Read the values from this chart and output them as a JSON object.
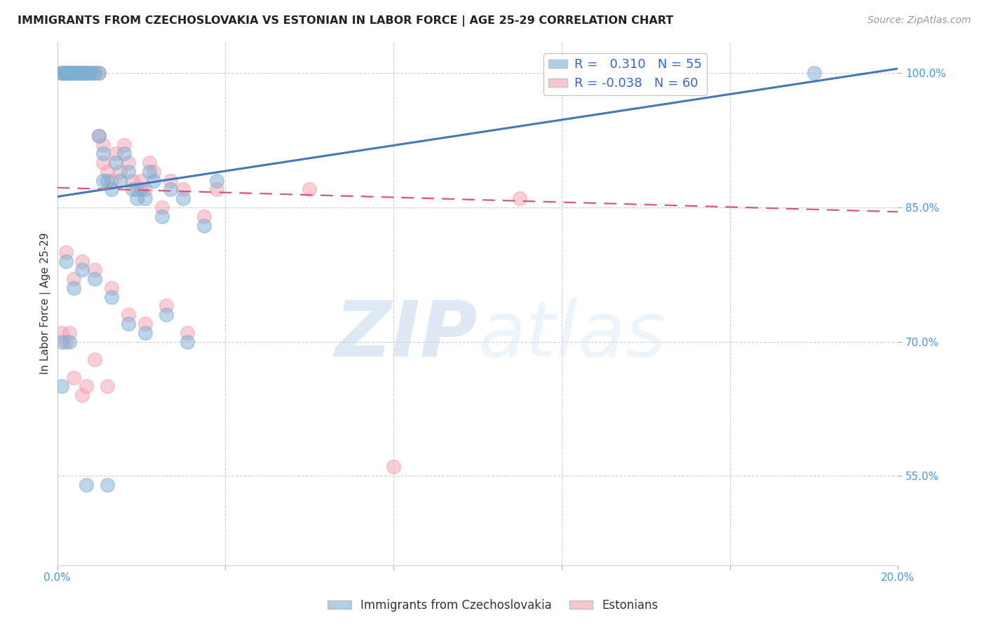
{
  "title": "IMMIGRANTS FROM CZECHOSLOVAKIA VS ESTONIAN IN LABOR FORCE | AGE 25-29 CORRELATION CHART",
  "source_text": "Source: ZipAtlas.com",
  "ylabel": "In Labor Force | Age 25-29",
  "x_min": 0.0,
  "x_max": 0.2,
  "y_min": 0.45,
  "y_max": 1.035,
  "x_ticks": [
    0.0,
    0.04,
    0.08,
    0.12,
    0.16,
    0.2
  ],
  "x_tick_labels": [
    "0.0%",
    "",
    "",
    "",
    "",
    "20.0%"
  ],
  "y_tick_labels": [
    "55.0%",
    "70.0%",
    "85.0%",
    "100.0%"
  ],
  "y_ticks": [
    0.55,
    0.7,
    0.85,
    1.0
  ],
  "grid_color": "#c8c8c8",
  "background_color": "#ffffff",
  "blue_color": "#7bafd4",
  "pink_color": "#f4a0b0",
  "blue_line_color": "#4477bb",
  "pink_line_color": "#dd5577",
  "legend_r_blue": "0.310",
  "legend_n_blue": "55",
  "legend_r_pink": "-0.038",
  "legend_n_pink": "60",
  "legend_label_blue": "Immigrants from Czechoslovakia",
  "legend_label_pink": "Estonians",
  "watermark_zip": "ZIP",
  "watermark_atlas": "atlas",
  "blue_line_x0": 0.0,
  "blue_line_y0": 0.862,
  "blue_line_x1": 0.2,
  "blue_line_y1": 1.005,
  "pink_line_x0": 0.0,
  "pink_line_x1": 0.2,
  "pink_line_y0": 0.872,
  "pink_line_y1": 0.845,
  "blue_scatter_x": [
    0.001,
    0.001,
    0.002,
    0.002,
    0.002,
    0.003,
    0.003,
    0.003,
    0.004,
    0.004,
    0.005,
    0.005,
    0.006,
    0.006,
    0.007,
    0.007,
    0.008,
    0.008,
    0.009,
    0.01,
    0.01,
    0.011,
    0.011,
    0.012,
    0.013,
    0.014,
    0.015,
    0.016,
    0.017,
    0.018,
    0.019,
    0.02,
    0.021,
    0.022,
    0.023,
    0.025,
    0.027,
    0.03,
    0.035,
    0.038,
    0.002,
    0.004,
    0.006,
    0.009,
    0.013,
    0.017,
    0.021,
    0.026,
    0.031,
    0.001,
    0.003,
    0.007,
    0.012,
    0.18,
    0.001
  ],
  "blue_scatter_y": [
    1.0,
    1.0,
    1.0,
    1.0,
    1.0,
    1.0,
    1.0,
    1.0,
    1.0,
    1.0,
    1.0,
    1.0,
    1.0,
    1.0,
    1.0,
    1.0,
    1.0,
    1.0,
    1.0,
    1.0,
    0.93,
    0.91,
    0.88,
    0.88,
    0.87,
    0.9,
    0.88,
    0.91,
    0.89,
    0.87,
    0.86,
    0.87,
    0.86,
    0.89,
    0.88,
    0.84,
    0.87,
    0.86,
    0.83,
    0.88,
    0.79,
    0.76,
    0.78,
    0.77,
    0.75,
    0.72,
    0.71,
    0.73,
    0.7,
    0.7,
    0.7,
    0.54,
    0.54,
    1.0,
    0.65
  ],
  "pink_scatter_x": [
    0.001,
    0.001,
    0.002,
    0.002,
    0.002,
    0.003,
    0.003,
    0.003,
    0.004,
    0.004,
    0.005,
    0.005,
    0.006,
    0.006,
    0.007,
    0.007,
    0.008,
    0.008,
    0.009,
    0.01,
    0.01,
    0.011,
    0.011,
    0.012,
    0.013,
    0.014,
    0.015,
    0.016,
    0.017,
    0.018,
    0.019,
    0.02,
    0.021,
    0.022,
    0.023,
    0.025,
    0.027,
    0.03,
    0.035,
    0.038,
    0.002,
    0.004,
    0.006,
    0.009,
    0.013,
    0.017,
    0.021,
    0.026,
    0.031,
    0.001,
    0.003,
    0.007,
    0.012,
    0.11,
    0.06,
    0.08,
    0.002,
    0.004,
    0.006,
    0.009
  ],
  "pink_scatter_y": [
    1.0,
    1.0,
    1.0,
    1.0,
    1.0,
    1.0,
    1.0,
    1.0,
    1.0,
    1.0,
    1.0,
    1.0,
    1.0,
    1.0,
    1.0,
    1.0,
    1.0,
    1.0,
    1.0,
    1.0,
    0.93,
    0.92,
    0.9,
    0.89,
    0.88,
    0.91,
    0.89,
    0.92,
    0.9,
    0.88,
    0.87,
    0.88,
    0.87,
    0.9,
    0.89,
    0.85,
    0.88,
    0.87,
    0.84,
    0.87,
    0.8,
    0.77,
    0.79,
    0.78,
    0.76,
    0.73,
    0.72,
    0.74,
    0.71,
    0.71,
    0.71,
    0.65,
    0.65,
    0.86,
    0.87,
    0.56,
    0.7,
    0.66,
    0.64,
    0.68
  ]
}
